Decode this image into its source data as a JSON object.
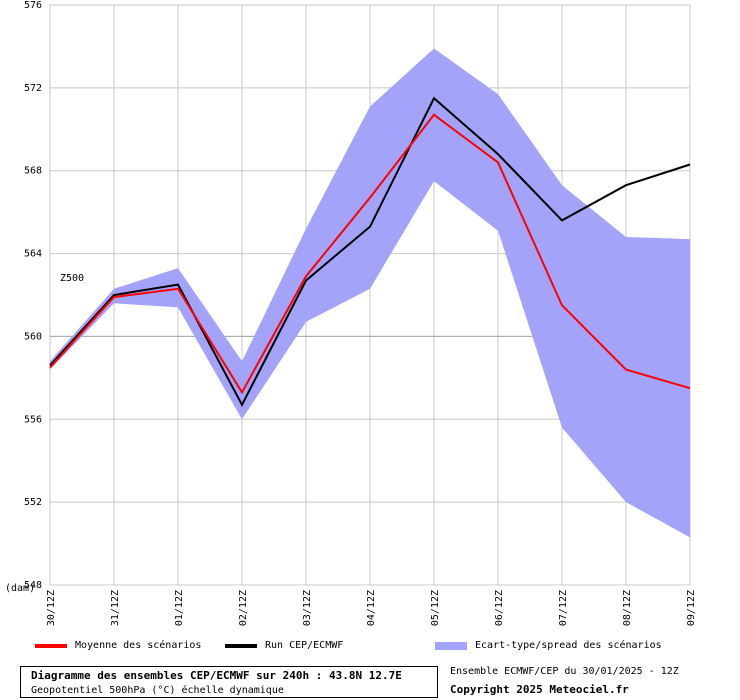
{
  "chart_data": {
    "type": "line",
    "variable_label": "Z500",
    "unit_label": "(dam)",
    "x": [
      "30/12Z",
      "31/12Z",
      "01/12Z",
      "02/12Z",
      "03/12Z",
      "04/12Z",
      "05/12Z",
      "06/12Z",
      "07/12Z",
      "08/12Z",
      "09/12Z"
    ],
    "ylim": [
      548,
      576
    ],
    "yticks": [
      548,
      552,
      556,
      560,
      564,
      568,
      572,
      576
    ],
    "grid": true,
    "series": [
      {
        "name": "Moyenne des scénarios",
        "color": "#ff0000",
        "values": [
          558.5,
          561.9,
          562.3,
          557.3,
          562.9,
          566.7,
          570.7,
          568.4,
          561.5,
          558.4,
          557.5
        ]
      },
      {
        "name": "Run CEP/ECMWF",
        "color": "#000000",
        "values": [
          558.6,
          562.0,
          562.5,
          556.7,
          562.7,
          565.3,
          571.5,
          568.8,
          565.6,
          567.3,
          568.3
        ]
      }
    ],
    "band": {
      "name": "Ecart-type/spread des scénarios",
      "color": "#a3a3fa",
      "upper": [
        558.8,
        562.3,
        563.3,
        558.8,
        565.2,
        571.1,
        573.9,
        571.7,
        567.3,
        564.8,
        564.7
      ],
      "lower": [
        558.4,
        561.6,
        561.4,
        556.0,
        560.7,
        562.3,
        567.5,
        565.1,
        555.6,
        552.0,
        550.3
      ]
    }
  },
  "footer": {
    "title": "Diagramme des ensembles CEP/ECMWF sur 240h : 43.8N 12.7E",
    "subtitle": "Geopotentiel 500hPa (°C) échelle dynamique",
    "ensemble_info": "Ensemble ECMWF/CEP du 30/01/2025 - 12Z",
    "copyright": "Copyright 2025 Meteociel.fr"
  }
}
